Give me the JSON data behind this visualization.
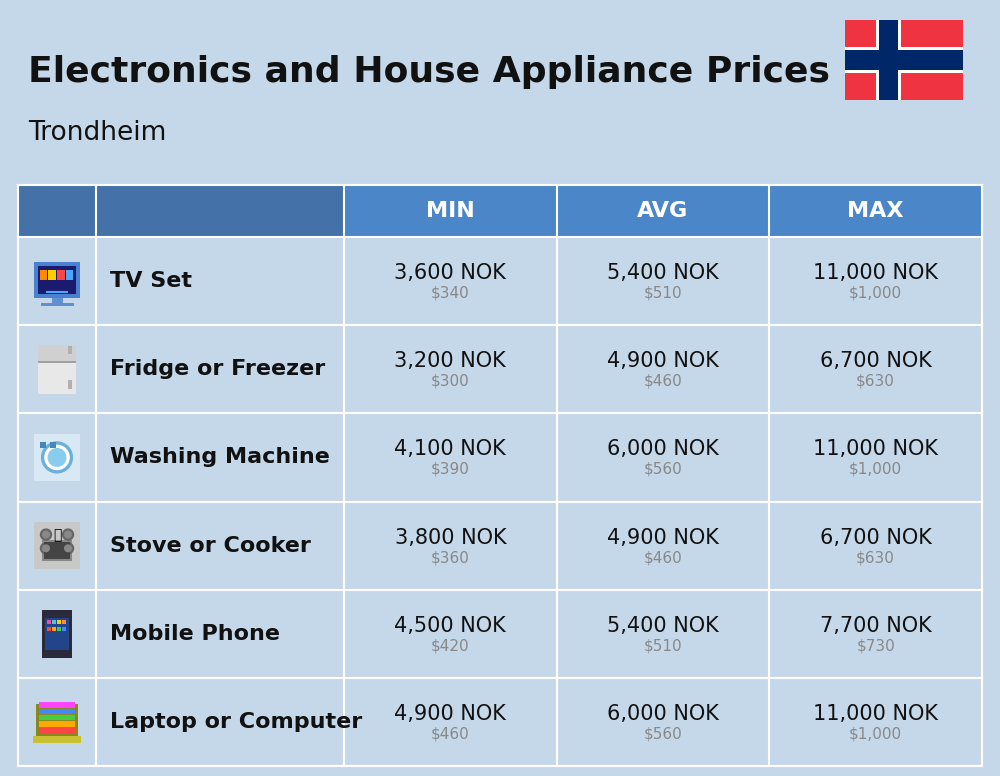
{
  "title": "Electronics and House Appliance Prices",
  "subtitle": "Trondheim",
  "bg_color": "#c5d8ea",
  "header_bg": "#4a86c8",
  "header_text_color": "#ffffff",
  "divider_color": "#ffffff",
  "col_headers": [
    "MIN",
    "AVG",
    "MAX"
  ],
  "items": [
    {
      "name": "TV Set",
      "min_nok": "3,600 NOK",
      "min_usd": "$340",
      "avg_nok": "5,400 NOK",
      "avg_usd": "$510",
      "max_nok": "11,000 NOK",
      "max_usd": "$1,000"
    },
    {
      "name": "Fridge or Freezer",
      "min_nok": "3,200 NOK",
      "min_usd": "$300",
      "avg_nok": "4,900 NOK",
      "avg_usd": "$460",
      "max_nok": "6,700 NOK",
      "max_usd": "$630"
    },
    {
      "name": "Washing Machine",
      "min_nok": "4,100 NOK",
      "min_usd": "$390",
      "avg_nok": "6,000 NOK",
      "avg_usd": "$560",
      "max_nok": "11,000 NOK",
      "max_usd": "$1,000"
    },
    {
      "name": "Stove or Cooker",
      "min_nok": "3,800 NOK",
      "min_usd": "$360",
      "avg_nok": "4,900 NOK",
      "avg_usd": "$460",
      "max_nok": "6,700 NOK",
      "max_usd": "$630"
    },
    {
      "name": "Mobile Phone",
      "min_nok": "4,500 NOK",
      "min_usd": "$420",
      "avg_nok": "5,400 NOK",
      "avg_usd": "$510",
      "max_nok": "7,700 NOK",
      "max_usd": "$730"
    },
    {
      "name": "Laptop or Computer",
      "min_nok": "4,900 NOK",
      "min_usd": "$460",
      "avg_nok": "6,000 NOK",
      "avg_usd": "$560",
      "max_nok": "11,000 NOK",
      "max_usd": "$1,000"
    }
  ],
  "nok_fontsize": 15,
  "usd_fontsize": 11,
  "item_fontsize": 16,
  "header_fontsize": 16,
  "title_fontsize": 26,
  "subtitle_fontsize": 19,
  "flag_red": "#EF3340",
  "flag_blue": "#002868",
  "flag_white": "#ffffff"
}
